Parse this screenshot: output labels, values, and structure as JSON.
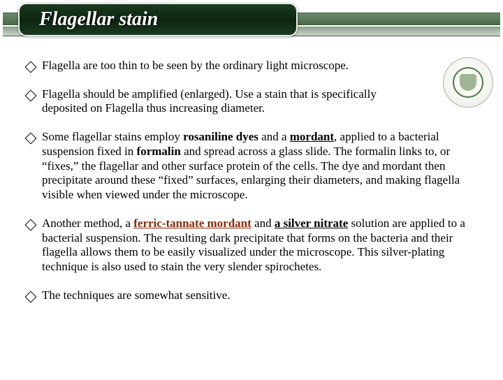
{
  "title": "Flagellar stain",
  "bullets": {
    "b1": "Flagella are too thin to be seen by the ordinary light microscope.",
    "b2": "Flagella should be amplified (enlarged). Use a stain that is specifically deposited on Flagella thus increasing diameter.",
    "b3_pre": "Some flagellar stains employ ",
    "b3_rosaniline": "rosaniline dyes",
    "b3_mid1": " and a ",
    "b3_mordant": "mordant",
    "b3_mid2": ", applied to a bacterial suspension fixed in ",
    "b3_formalin": "formalin",
    "b3_post": " and spread across a glass slide. The formalin links to, or “fixes,” the flagellar and other surface protein of the cells. The dye and mordant then precipitate around these “fixed” surfaces, enlarging their diameters, and making flagella visible when viewed under the microscope.",
    "b4_pre": "Another method, a ",
    "b4_ferric": "ferric-tannate mordant",
    "b4_mid1": " and ",
    "b4_silver": "a silver nitrate",
    "b4_post": " solution are applied to a bacterial suspension. The resulting dark precipitate that forms on the bacteria and their flagella allows them to be easily visualized under the microscope. This silver-plating technique is also used to stain the very slender spirochetes.",
    "b5": "The techniques are somewhat sensitive."
  },
  "colors": {
    "title_pill_bg": "#1a3a1f",
    "title_text": "#ffffff",
    "bar_top": "#6a8a6a",
    "bar_bottom": "#ccd6cc",
    "ferric_color": "#8a2a0a",
    "body_bg": "#ffffff"
  },
  "logo": {
    "name": "university-seal-icon"
  }
}
